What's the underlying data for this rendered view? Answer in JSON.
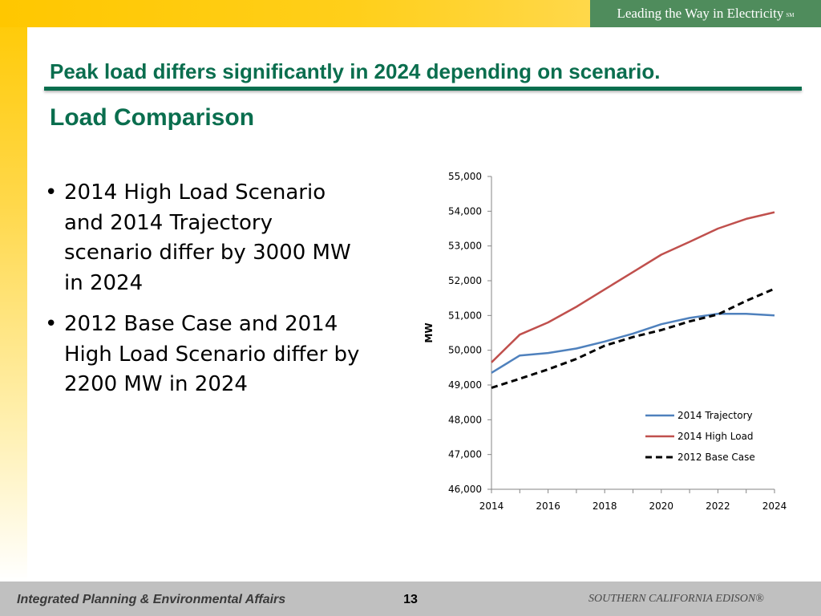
{
  "brand": {
    "tagline": "Leading the Way in Electricity",
    "mark": "SM"
  },
  "slide": {
    "headline": "Peak load differs significantly in 2024 depending on scenario.",
    "subtitle": "Load Comparison",
    "bullets": [
      "2014 High Load Scenario and 2014 Trajectory scenario differ by 3000 MW in 2024",
      "2012 Base Case and 2014 High Load Scenario differ by 2200 MW in 2024"
    ],
    "bullet_glyph": "•"
  },
  "footer": {
    "left": "Integrated Planning & Environmental Affairs",
    "page": "13",
    "right": "SOUTHERN CALIFORNIA EDISON®"
  },
  "colors": {
    "title_green": "#0a6e4e",
    "brand_green": "#4f8c5c",
    "trajectory": "#4f81bd",
    "high_load": "#c0504d",
    "base_case": "#000000"
  },
  "chart_data": {
    "type": "line",
    "title": "",
    "xlabel": "",
    "ylabel": "MW",
    "x": [
      2014,
      2015,
      2016,
      2017,
      2018,
      2019,
      2020,
      2021,
      2022,
      2023,
      2024
    ],
    "xticks": [
      "2014",
      "2016",
      "2018",
      "2020",
      "2022",
      "2024"
    ],
    "xlim": [
      2014,
      2024
    ],
    "ylim": [
      46000,
      55000
    ],
    "yticks": [
      "46,000",
      "47,000",
      "48,000",
      "49,000",
      "50,000",
      "51,000",
      "52,000",
      "53,000",
      "54,000",
      "55,000"
    ],
    "grid": false,
    "legend_position": "bottom-right",
    "series": [
      {
        "name": "2014 Trajectory",
        "color": "#4f81bd",
        "dash": "solid",
        "values": [
          49350,
          49850,
          49920,
          50050,
          50250,
          50480,
          50750,
          50930,
          51050,
          51050,
          51000
        ]
      },
      {
        "name": "2014 High Load",
        "color": "#c0504d",
        "dash": "solid",
        "values": [
          49650,
          50450,
          50800,
          51250,
          51750,
          52250,
          52750,
          53120,
          53500,
          53780,
          53970
        ]
      },
      {
        "name": "2012 Base Case",
        "color": "#000000",
        "dash": "dashed",
        "values": [
          48920,
          49180,
          49450,
          49750,
          50130,
          50380,
          50580,
          50830,
          51030,
          51420,
          51770
        ]
      }
    ]
  }
}
